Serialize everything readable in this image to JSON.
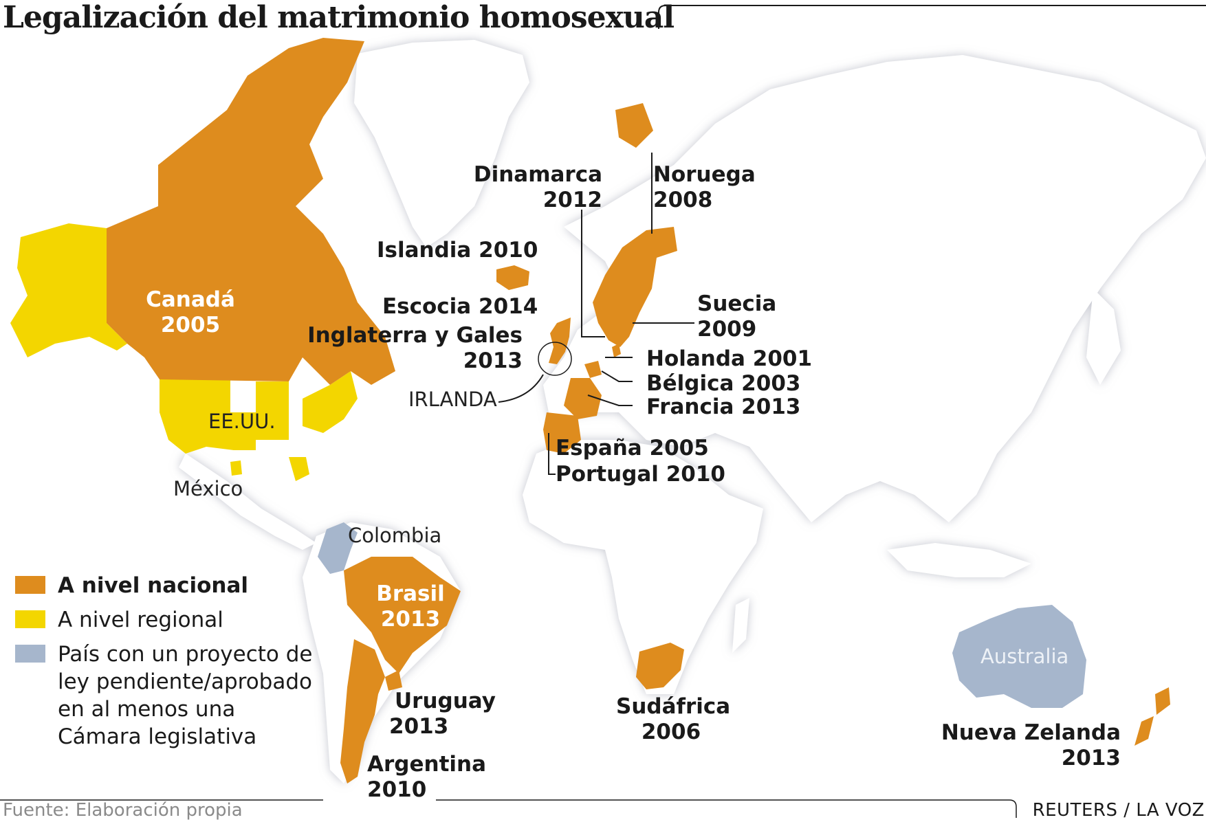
{
  "title": "Legalización del matrimonio homosexual",
  "colors": {
    "national": "#de8c1e",
    "regional": "#f3d600",
    "pending": "#a6b6cc",
    "land": "#ffffff",
    "sea_shadow": "#c9cbd3",
    "border_line": "#dcdde2"
  },
  "countries": {
    "canada": {
      "name": "Canadá",
      "year": "2005"
    },
    "usa": {
      "name": "EE.UU."
    },
    "mexico": {
      "name": "México"
    },
    "colombia": {
      "name": "Colombia"
    },
    "brazil": {
      "name": "Brasil",
      "year": "2013"
    },
    "uruguay": {
      "name": "Uruguay",
      "year": "2013"
    },
    "argentina": {
      "name": "Argentina",
      "year": "2010"
    },
    "iceland": {
      "label": "Islandia 2010"
    },
    "scotland": {
      "label": "Escocia 2014"
    },
    "england": {
      "name": "Inglaterra y Gales",
      "year": "2013"
    },
    "ireland": {
      "name": "IRLANDA"
    },
    "denmark": {
      "name": "Dinamarca",
      "year": "2012"
    },
    "norway": {
      "name": "Noruega",
      "year": "2008"
    },
    "sweden": {
      "name": "Suecia",
      "year": "2009"
    },
    "netherlands": {
      "label": "Holanda 2001"
    },
    "belgium": {
      "label": "Bélgica 2003"
    },
    "france": {
      "label": "Francia 2013"
    },
    "spain": {
      "label": "España 2005"
    },
    "portugal": {
      "label": "Portugal 2010"
    },
    "south_africa": {
      "name": "Sudáfrica",
      "year": "2006"
    },
    "australia": {
      "name": "Australia"
    },
    "new_zealand": {
      "name": "Nueva Zelanda",
      "year": "2013"
    }
  },
  "legend": {
    "national": "A nivel nacional",
    "regional": "A nivel regional",
    "pending_lines": [
      "País con un proyecto de",
      "ley pendiente/aprobado",
      "en al menos una",
      "Cámara legislativa"
    ]
  },
  "footer": {
    "source": "Fuente: Elaboración propia",
    "credit": "REUTERS / LA VOZ"
  }
}
